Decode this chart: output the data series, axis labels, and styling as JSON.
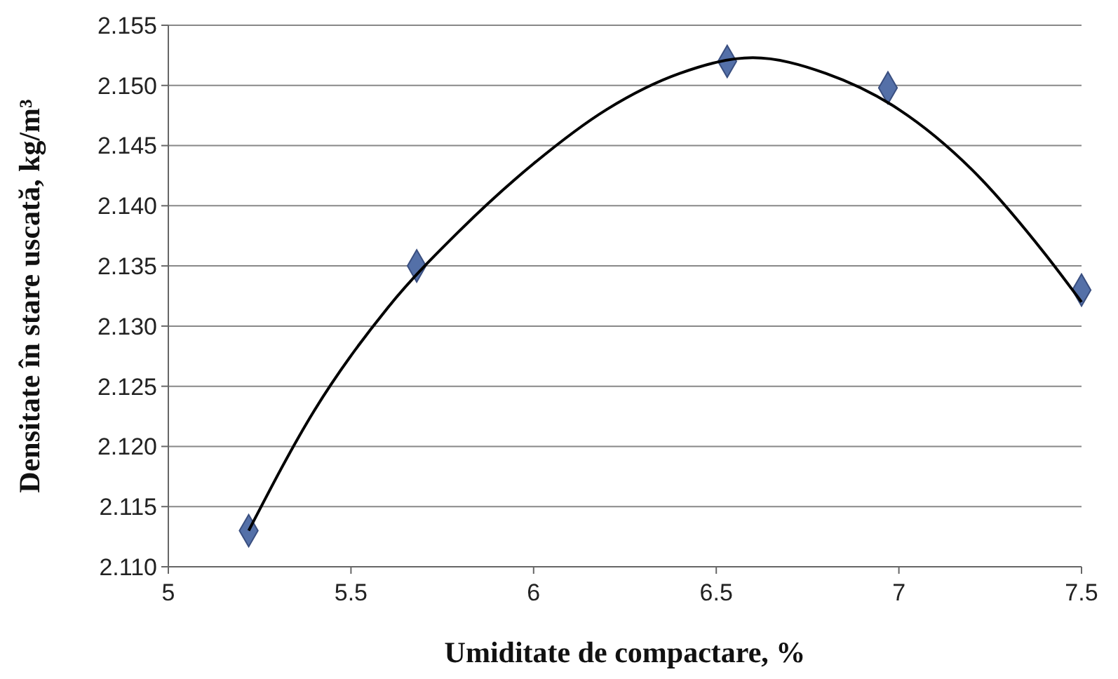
{
  "chart_data": {
    "type": "scatter",
    "xlabel": "Umiditate de compactare, %",
    "ylabel": "Densitate în stare uscată, kg/m³",
    "xlim": [
      5,
      7.5
    ],
    "xticks": [
      5,
      5.5,
      6,
      6.5,
      7,
      7.5
    ],
    "ylim": [
      2.11,
      2.155
    ],
    "yticks": [
      {
        "value": 2.11,
        "label": "2.110"
      },
      2.115,
      {
        "value": 2.12,
        "label": "2.120"
      },
      2.125,
      {
        "value": 2.13,
        "label": "2.130"
      },
      2.135,
      {
        "value": 2.14,
        "label": "2.140"
      },
      2.145,
      {
        "value": 2.15,
        "label": "2.150"
      },
      2.155
    ],
    "grid": "y",
    "marker": "diamond",
    "series": [
      {
        "color": "#5470a8",
        "x": [
          5.22,
          5.68,
          6.53,
          6.97,
          7.5
        ],
        "values": [
          2.113,
          2.135,
          2.152,
          2.1498,
          2.133
        ]
      },
      {
        "type": "line",
        "color": "#000000",
        "marker": "none",
        "line_style": "solid",
        "x": [
          5.22,
          5.4,
          5.6,
          5.8,
          6.0,
          6.2,
          6.4,
          6.6,
          6.8,
          7.0,
          7.2,
          7.4,
          7.5
        ],
        "values": [
          2.113,
          2.123,
          2.1315,
          2.138,
          2.1435,
          2.148,
          2.151,
          2.1523,
          2.151,
          2.148,
          2.143,
          2.136,
          2.132
        ]
      }
    ]
  }
}
